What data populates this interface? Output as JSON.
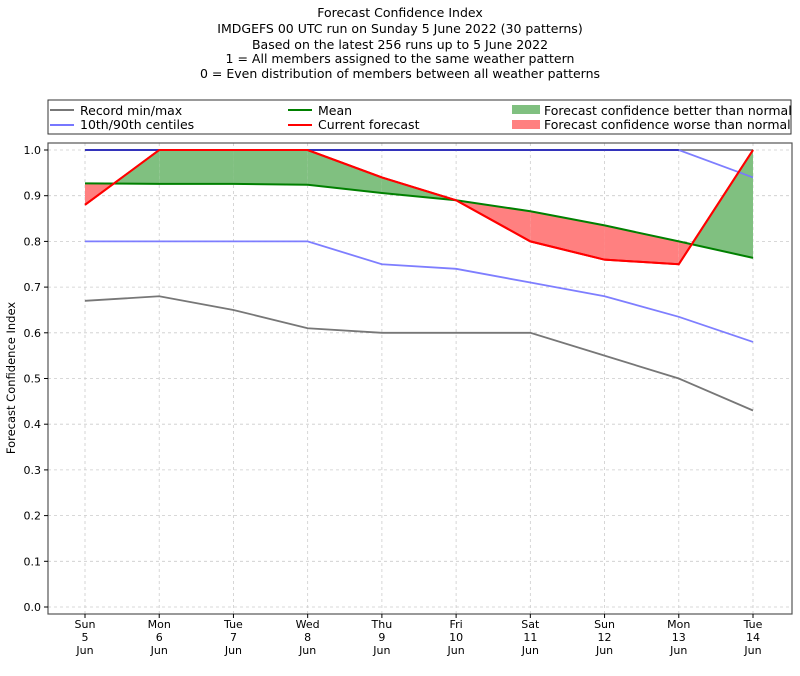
{
  "chart_data": {
    "type": "line",
    "title_lines": [
      "Forecast Confidence Index",
      "IMDGEFS 00 UTC run on Sunday 5 June 2022 (30 patterns)",
      "Based on the latest 256 runs up to 5 June 2022",
      "1 = All members assigned to the same weather pattern",
      "0 = Even distribution of members between all weather patterns"
    ],
    "xlabel": "",
    "ylabel": "Forecast Confidence Index",
    "ylim": [
      0.0,
      1.0
    ],
    "yticks": [
      "0.0",
      "0.1",
      "0.2",
      "0.3",
      "0.4",
      "0.5",
      "0.6",
      "0.7",
      "0.8",
      "0.9",
      "1.0"
    ],
    "grid": true,
    "legend_position": "top",
    "categories": [
      {
        "dow": "Sun",
        "day": "5",
        "mon": "Jun"
      },
      {
        "dow": "Mon",
        "day": "6",
        "mon": "Jun"
      },
      {
        "dow": "Tue",
        "day": "7",
        "mon": "Jun"
      },
      {
        "dow": "Wed",
        "day": "8",
        "mon": "Jun"
      },
      {
        "dow": "Thu",
        "day": "9",
        "mon": "Jun"
      },
      {
        "dow": "Fri",
        "day": "10",
        "mon": "Jun"
      },
      {
        "dow": "Sat",
        "day": "11",
        "mon": "Jun"
      },
      {
        "dow": "Sun",
        "day": "12",
        "mon": "Jun"
      },
      {
        "dow": "Mon",
        "day": "13",
        "mon": "Jun"
      },
      {
        "dow": "Tue",
        "day": "14",
        "mon": "Jun"
      }
    ],
    "series": [
      {
        "name": "Record max",
        "legend": "Record min/max",
        "color": "#777777",
        "values": [
          1.0,
          1.0,
          1.0,
          1.0,
          1.0,
          1.0,
          1.0,
          1.0,
          1.0,
          1.0
        ]
      },
      {
        "name": "Record min",
        "legend": "Record min/max",
        "color": "#777777",
        "values": [
          0.67,
          0.68,
          0.65,
          0.61,
          0.6,
          0.6,
          0.6,
          0.55,
          0.5,
          0.43
        ]
      },
      {
        "name": "90th centile",
        "legend": "10th/90th centiles",
        "color": "#7777ff",
        "values": [
          1.0,
          1.0,
          1.0,
          1.0,
          1.0,
          1.0,
          1.0,
          1.0,
          1.0,
          0.94
        ]
      },
      {
        "name": "10th centile",
        "legend": "10th/90th centiles",
        "color": "#7777ff",
        "values": [
          0.8,
          0.8,
          0.8,
          0.8,
          0.75,
          0.74,
          0.71,
          0.68,
          0.635,
          0.58
        ]
      },
      {
        "name": "Mean",
        "legend": "Mean",
        "color": "#008000",
        "values": [
          0.927,
          0.926,
          0.926,
          0.924,
          0.906,
          0.89,
          0.866,
          0.835,
          0.8,
          0.764
        ]
      },
      {
        "name": "Current forecast",
        "legend": "Current forecast",
        "color": "#ff0000",
        "values": [
          0.88,
          1.0,
          1.0,
          1.0,
          0.94,
          0.89,
          0.8,
          0.76,
          0.75,
          1.0
        ]
      }
    ],
    "legend": [
      {
        "label": "Record min/max",
        "kind": "line",
        "color": "#777777"
      },
      {
        "label": "10th/90th centiles",
        "kind": "line",
        "color": "#7777ff"
      },
      {
        "label": "Mean",
        "kind": "line",
        "color": "#008000"
      },
      {
        "label": "Current forecast",
        "kind": "line",
        "color": "#ff0000"
      },
      {
        "label": "Forecast confidence better than normal",
        "kind": "patch",
        "color": "#80c080"
      },
      {
        "label": "Forecast confidence worse than normal",
        "kind": "patch",
        "color": "#ff8080"
      }
    ],
    "fill_colors": {
      "better": "#80c080",
      "worse": "#ff8080"
    }
  }
}
